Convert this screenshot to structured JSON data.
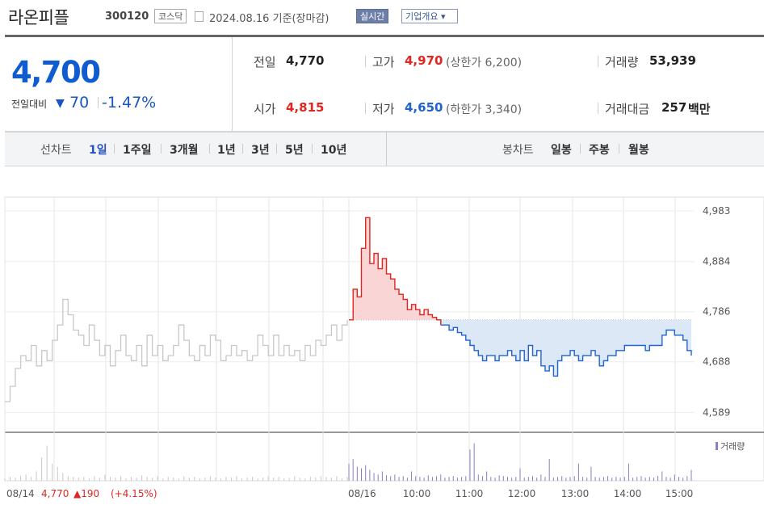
{
  "header": {
    "name": "라온피플",
    "code": "300120",
    "market": "코스닥",
    "date": "2024.08.16 기준(장마감)",
    "realtime": "실시간",
    "company_info": "기업개요 ▾"
  },
  "quote": {
    "price": "4,700",
    "change_label": "전일대비",
    "change_icon": "down-triangle-icon",
    "change_value": "70",
    "change_rate": "-1.47%",
    "prev_label": "전일",
    "prev_value": "4,770",
    "open_label": "시가",
    "open_value": "4,815",
    "high_label": "고가",
    "high_value": "4,970",
    "upper_limit": "(상한가 6,200)",
    "low_label": "저가",
    "low_value": "4,650",
    "lower_limit": "(하한가 3,340)",
    "volume_label": "거래량",
    "volume_value": "53,939",
    "amount_label": "거래대금",
    "amount_value": "257",
    "amount_unit": "백만"
  },
  "tabs": {
    "line_label": "선차트",
    "line_items": [
      "1일",
      "1주일",
      "3개월",
      "1년",
      "3년",
      "5년",
      "10년"
    ],
    "active": "1일",
    "candle_label": "봉차트",
    "candle_items": [
      "일봉",
      "주봉",
      "월봉"
    ]
  },
  "colors": {
    "up": "#e0261f",
    "down": "#1f63d0",
    "accent": "#0f5cd0",
    "prev_line": "#c8c8c8"
  },
  "chart_data": {
    "type": "line",
    "y_ticks": [
      "4,983",
      "4,884",
      "4,786",
      "4,688",
      "4,589"
    ],
    "ylim": [
      4550,
      5010
    ],
    "reference_price": 4770,
    "prev_day": {
      "label": "08/14",
      "values": [
        4610,
        4640,
        4675,
        4700,
        4690,
        4720,
        4680,
        4710,
        4690,
        4730,
        4760,
        4810,
        4780,
        4750,
        4740,
        4720,
        4760,
        4730,
        4700,
        4720,
        4680,
        4710,
        4740,
        4700,
        4690,
        4720,
        4680,
        4740,
        4700,
        4720,
        4690,
        4700,
        4720,
        4760,
        4730,
        4700,
        4690,
        4720,
        4700,
        4740,
        4730,
        4690,
        4700,
        4720,
        4700,
        4710,
        4690,
        4700,
        4740,
        4720,
        4700,
        4740,
        4700,
        4720,
        4700,
        4710,
        4690,
        4720,
        4700,
        4730,
        4720,
        4740,
        4760,
        4730,
        4760,
        4770
      ]
    },
    "today": {
      "label": "08/16",
      "x_ticks": [
        "10:00",
        "11:00",
        "12:00",
        "13:00",
        "14:00",
        "15:00"
      ],
      "values": [
        4770,
        4830,
        4815,
        4910,
        4970,
        4880,
        4900,
        4870,
        4890,
        4860,
        4850,
        4830,
        4820,
        4810,
        4790,
        4800,
        4790,
        4780,
        4790,
        4780,
        4775,
        4770,
        4760,
        4760,
        4750,
        4755,
        4745,
        4740,
        4730,
        4720,
        4710,
        4700,
        4690,
        4700,
        4700,
        4690,
        4700,
        4700,
        4710,
        4700,
        4690,
        4710,
        4690,
        4720,
        4700,
        4710,
        4680,
        4670,
        4680,
        4660,
        4690,
        4700,
        4700,
        4710,
        4700,
        4690,
        4700,
        4700,
        4710,
        4700,
        4680,
        4690,
        4700,
        4700,
        4710,
        4710,
        4720,
        4720,
        4720,
        4720,
        4720,
        4710,
        4720,
        4720,
        4720,
        4740,
        4750,
        4750,
        4740,
        4740,
        4730,
        4710,
        4700
      ]
    },
    "prev_day_summary": {
      "close": "4,770",
      "change": "▲190",
      "rate": "(+4.15%)"
    },
    "volume_label": "거래량",
    "volume_prev": [
      3,
      5,
      4,
      6,
      8,
      5,
      12,
      30,
      45,
      22,
      18,
      10,
      6,
      5,
      4,
      5,
      3,
      6,
      4,
      8,
      5,
      4,
      6,
      3,
      5,
      4,
      7,
      5,
      4,
      6,
      3,
      5,
      4,
      3,
      6,
      4,
      5,
      3,
      4,
      6,
      4,
      3,
      5,
      4,
      6,
      3,
      4,
      5,
      3,
      4,
      6,
      4,
      5,
      3,
      4,
      6,
      4,
      3,
      5,
      4,
      6,
      5,
      4,
      6,
      3,
      5
    ],
    "volume_today": [
      22,
      28,
      18,
      16,
      20,
      14,
      10,
      8,
      12,
      7,
      6,
      8,
      5,
      6,
      4,
      12,
      6,
      5,
      4,
      7,
      5,
      6,
      8,
      4,
      5,
      6,
      4,
      5,
      6,
      40,
      48,
      8,
      6,
      12,
      5,
      4,
      7,
      6,
      5,
      4,
      5,
      16,
      4,
      5,
      6,
      4,
      8,
      5,
      28,
      4,
      5,
      6,
      4,
      5,
      6,
      22,
      5,
      4,
      18,
      5,
      4,
      5,
      6,
      4,
      5,
      4,
      5,
      22,
      4,
      5,
      6,
      4,
      5,
      4,
      6,
      12,
      5,
      4,
      8,
      5,
      4,
      6,
      14
    ]
  }
}
